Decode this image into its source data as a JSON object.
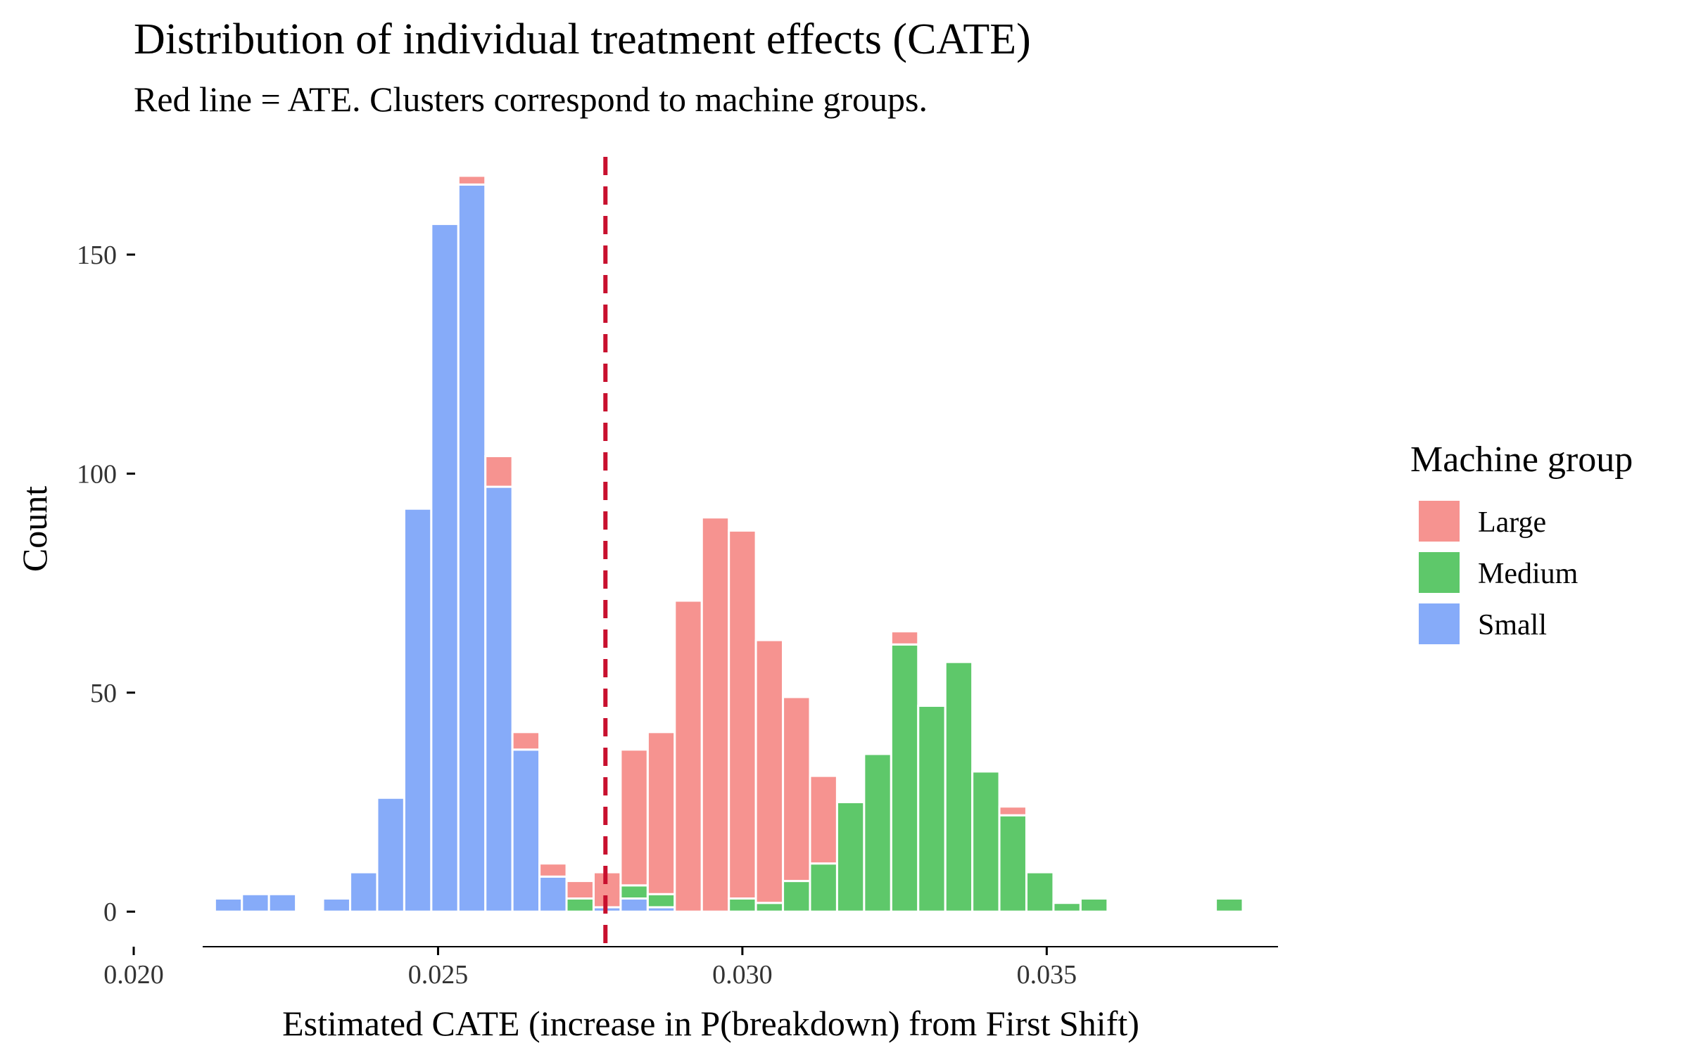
{
  "chart_data": {
    "type": "bar",
    "stacked": true,
    "title": "Distribution of individual treatment effects (CATE)",
    "subtitle": "Red line = ATE. Clusters correspond to machine groups.",
    "xlabel": "Estimated CATE (increase in P(breakdown) from First Shift)",
    "ylabel": "Count",
    "xlim": [
      0.02,
      0.0388
    ],
    "ylim": [
      -8,
      172
    ],
    "bin_width": 0.000444,
    "x_ticks": [
      0.02,
      0.025,
      0.03,
      0.035
    ],
    "x_tick_labels": [
      "0.020",
      "0.025",
      "0.030",
      "0.035"
    ],
    "y_ticks": [
      0,
      50,
      100,
      150
    ],
    "y_tick_labels": [
      "0",
      "50",
      "100",
      "150"
    ],
    "ate": 0.02775,
    "ate_color": "#C8102E",
    "legend_title": "Machine group",
    "bin_centers": [
      0.021111,
      0.021556,
      0.022,
      0.022444,
      0.022889,
      0.023333,
      0.023778,
      0.024222,
      0.024667,
      0.025111,
      0.025556,
      0.026,
      0.026444,
      0.026889,
      0.027333,
      0.027778,
      0.028222,
      0.028667,
      0.029111,
      0.029556,
      0.03,
      0.030444,
      0.030889,
      0.031333,
      0.031778,
      0.032222,
      0.032667,
      0.033111,
      0.033556,
      0.034,
      0.034444,
      0.034889,
      0.035333,
      0.035778,
      0.036222,
      0.036667,
      0.037111,
      0.037556,
      0.038
    ],
    "series": [
      {
        "name": "Small",
        "color": "#86ABF9",
        "values": [
          0,
          3,
          4,
          4,
          0,
          3,
          9,
          26,
          92,
          157,
          166,
          97,
          37,
          8,
          0,
          1,
          3,
          1,
          0,
          0,
          0,
          0,
          0,
          0,
          0,
          0,
          0,
          0,
          0,
          0,
          0,
          0,
          0,
          0,
          0,
          0,
          0,
          0,
          0
        ]
      },
      {
        "name": "Medium",
        "color": "#5EC86A",
        "values": [
          0,
          0,
          0,
          0,
          0,
          0,
          0,
          0,
          0,
          0,
          0,
          0,
          0,
          0,
          3,
          0,
          3,
          3,
          0,
          0,
          3,
          2,
          7,
          11,
          25,
          36,
          61,
          47,
          57,
          32,
          22,
          9,
          2,
          3,
          0,
          0,
          0,
          0,
          3
        ]
      },
      {
        "name": "Large",
        "color": "#F69390",
        "values": [
          0,
          0,
          0,
          0,
          0,
          0,
          0,
          0,
          0,
          0,
          2,
          7,
          4,
          3,
          4,
          8,
          31,
          37,
          71,
          90,
          84,
          60,
          42,
          20,
          0,
          0,
          3,
          0,
          0,
          0,
          2,
          0,
          0,
          0,
          0,
          0,
          0,
          0,
          0
        ]
      }
    ]
  }
}
